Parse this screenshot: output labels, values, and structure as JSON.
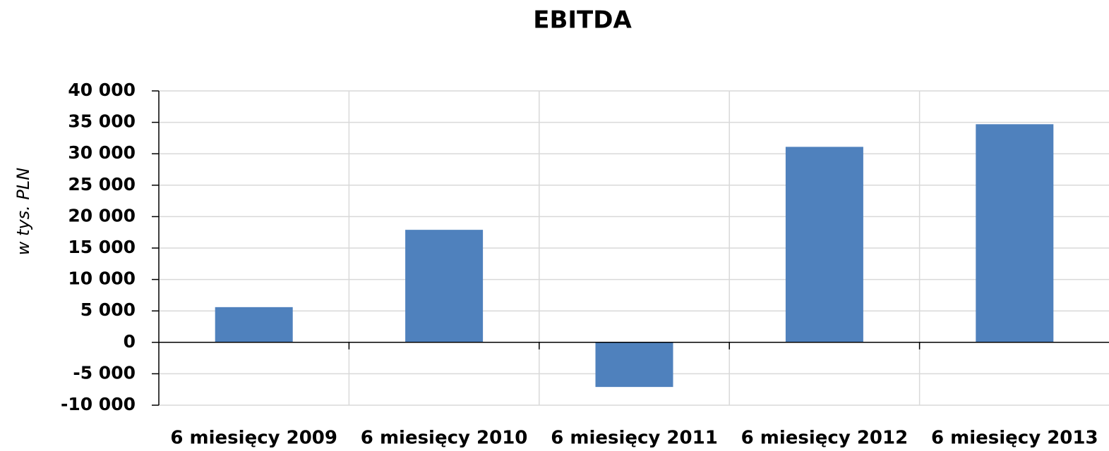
{
  "chart_data": {
    "type": "bar",
    "title": "EBITDA",
    "y_label": "w tys. PLN",
    "categories": [
      "6 miesięcy 2009",
      "6 miesięcy 2010",
      "6 miesięcy 2011",
      "6 miesięcy 2012",
      "6 miesięcy 2013"
    ],
    "values": [
      5600,
      17900,
      -7100,
      31100,
      34700
    ],
    "color": "#4f81bd",
    "ylim": [
      -10000,
      40000
    ],
    "yticks": [
      {
        "value": -10000,
        "label": "-10 000"
      },
      {
        "value": -5000,
        "label": "-5 000"
      },
      0,
      {
        "value": 5000,
        "label": "5 000"
      },
      {
        "value": 10000,
        "label": "10 000"
      },
      {
        "value": 15000,
        "label": "15 000"
      },
      {
        "value": 20000,
        "label": "20 000"
      },
      {
        "value": 25000,
        "label": "25 000"
      },
      {
        "value": 30000,
        "label": "30 000"
      },
      {
        "value": 35000,
        "label": "35 000"
      },
      {
        "value": 40000,
        "label": "40 000"
      }
    ],
    "grid": true
  }
}
